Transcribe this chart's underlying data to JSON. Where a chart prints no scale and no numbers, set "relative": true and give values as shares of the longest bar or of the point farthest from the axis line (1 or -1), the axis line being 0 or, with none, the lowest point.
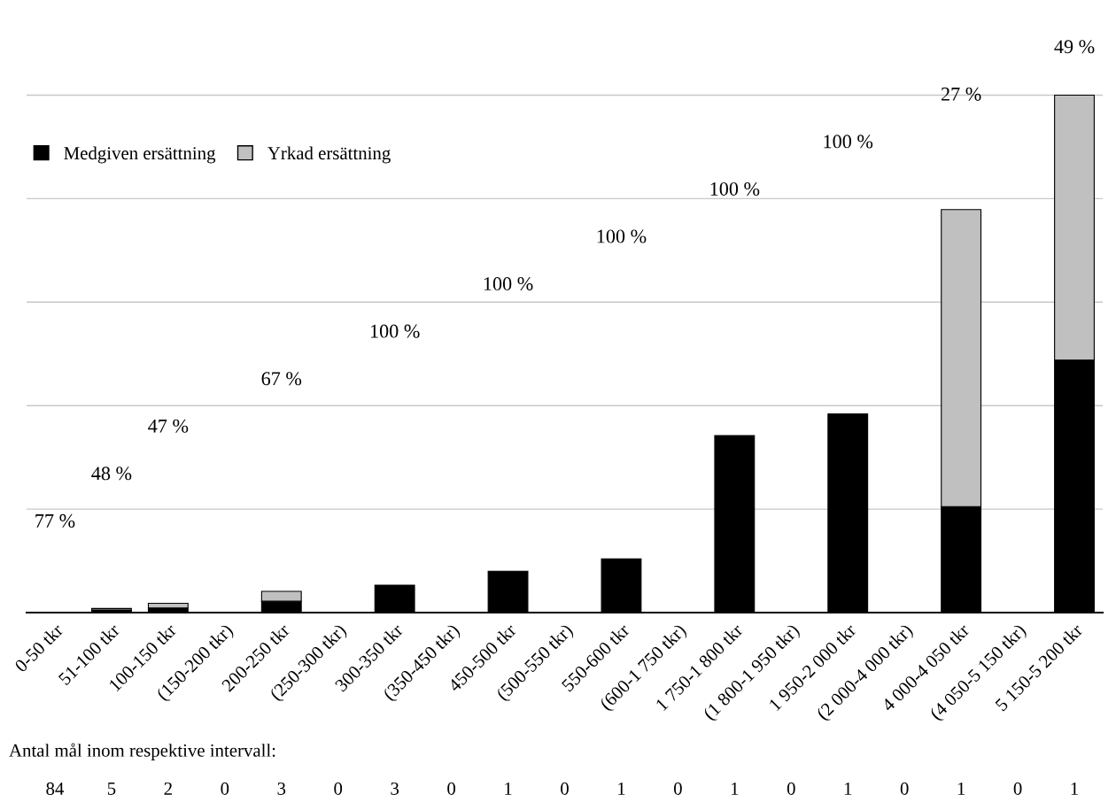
{
  "chart_data": {
    "type": "bar",
    "stacked": true,
    "relative": true,
    "grid": "y",
    "legend": "top left",
    "categories": [
      "0-50 tkr",
      "51-100 tkr",
      "100-150 tkr",
      "(150-200 tkr)",
      "200-250 tkr",
      "(250-300 tkr)",
      "300-350 tkr",
      "(350-450 tkr)",
      "450-500 tkr",
      "(500-550 tkr)",
      "550-600 tkr",
      "(600-1 750 tkr)",
      "1 750-1 800 tkr",
      "(1 800-1 950 tkr)",
      "1 950-2 000 tkr",
      "(2 000-4 000 tkr)",
      "4 000-4 050 tkr",
      "(4 050-5 150 tkr)",
      "5 150-5 200 tkr"
    ],
    "series": [
      {
        "name": "Medgiven ersättning",
        "color": "#000000",
        "values": [
          0,
          0.005,
          0.009,
          null,
          0.022,
          null,
          0.053,
          null,
          0.08,
          null,
          0.104,
          null,
          0.342,
          null,
          0.384,
          null,
          0.205,
          null,
          0.488
        ]
      },
      {
        "name": "Yrkad ersättning",
        "color": "#c0c0c0",
        "values": [
          0,
          0.003,
          0.009,
          null,
          0.019,
          null,
          0,
          null,
          0,
          null,
          0,
          null,
          0,
          null,
          0,
          null,
          0.574,
          null,
          0.512
        ]
      }
    ],
    "annotations": [
      "77 %",
      "48 %",
      "47 %",
      "67 %",
      "100 %",
      "100 %",
      "100 %",
      "100 %",
      "100 %",
      "27 %",
      "49 %",
      "Antal mål inom respektive intervall:",
      "84",
      "5",
      "2",
      "0",
      "3",
      "0",
      "3",
      "0",
      "1",
      "0",
      "1",
      "0",
      "1",
      "0",
      "1",
      "0",
      "1",
      "0",
      "1"
    ]
  }
}
